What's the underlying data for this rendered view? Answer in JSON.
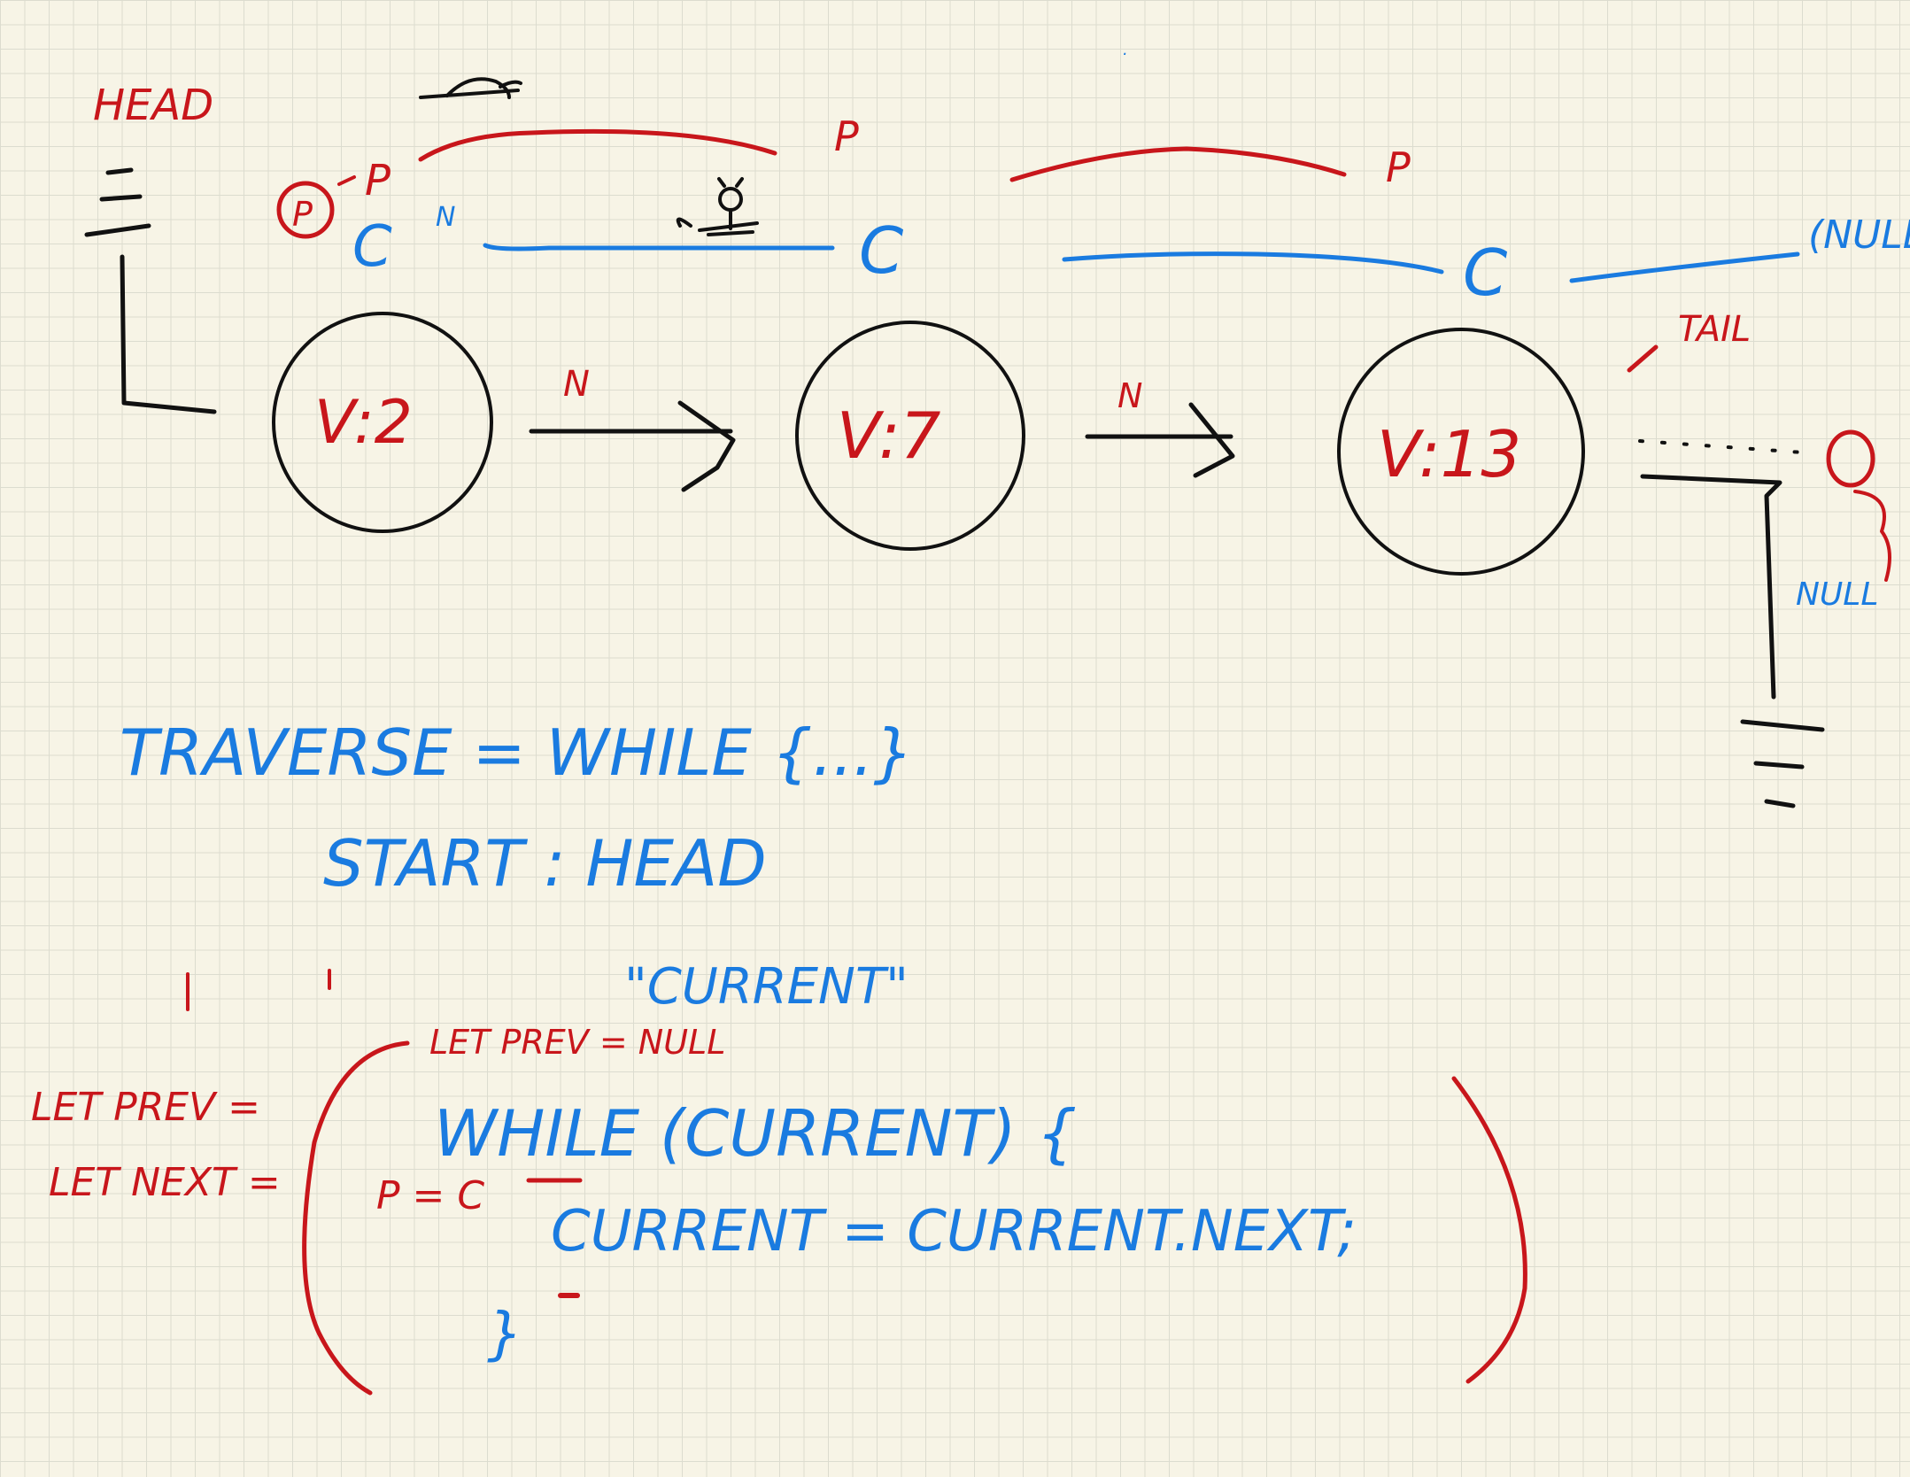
{
  "labels": {
    "head": "HEAD",
    "tail": "TAIL",
    "null_right": "(NULL)",
    "null_tail": "NULL",
    "prev_circle": "P",
    "prev_short": "P",
    "prev_mark_1": "P",
    "prev_mark_2": "P",
    "current_1": "C",
    "current_2": "C",
    "current_3": "C",
    "next_top": "N",
    "next_arrow_1": "N",
    "next_arrow_2": "N"
  },
  "nodes": [
    {
      "label": "V:2"
    },
    {
      "label": "V:7"
    },
    {
      "label": "V:13"
    }
  ],
  "notes": {
    "traverse_line": "TRAVERSE = WHILE {...}",
    "start_line": "START : HEAD",
    "current_quote": "\"CURRENT\"",
    "let_prev_null": "LET PREV = NULL",
    "let_prev": "LET PREV =",
    "let_next": "LET NEXT =",
    "while_line": "WHILE (CURRENT) {",
    "p_equals_c": "P = C",
    "current_assign": "CURRENT = CURRENT.NEXT;",
    "close_brace": "}"
  },
  "colors": {
    "red": "#c8161b",
    "blue": "#1a7be0",
    "black": "#111111",
    "paper": "#f7f4e6"
  }
}
